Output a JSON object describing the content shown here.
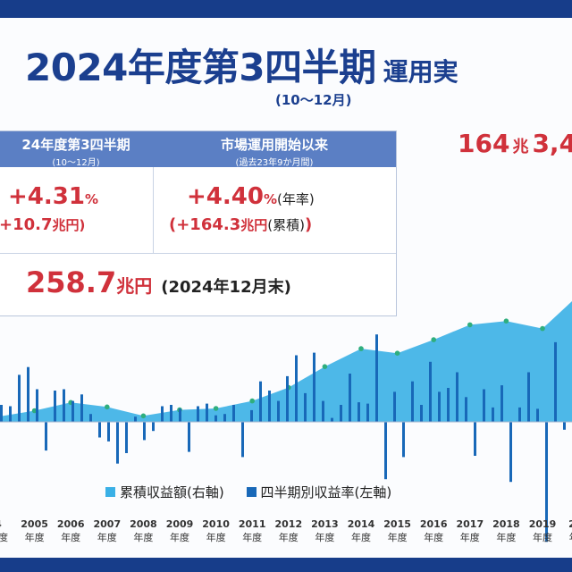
{
  "title": {
    "main": "2024年度第3四半期",
    "suffix": "運用実",
    "period": "(10〜12月)"
  },
  "headline": {
    "num1": "164",
    "unit1": "兆",
    "num2": "3,4"
  },
  "summary": {
    "col1_header": "24年度第3四半期",
    "col1_sub": "(10〜12月)",
    "col2_header": "市場運用開始以来",
    "col2_sub": "(過去23年9か月間)",
    "q_rate": "+4.31",
    "q_rate_unit": "%",
    "q_amount": "+10.7",
    "q_amount_unit": "兆円)",
    "q_amount_prefix": "(",
    "cum_rate": "+4.40",
    "cum_rate_unit": "%",
    "cum_rate_note": "(年率)",
    "cum_amount_prefix": "(+164.3",
    "cum_amount_unit": "兆円",
    "cum_amount_note": "(累積)",
    "cum_amount_close": ")",
    "assets": "258.7",
    "assets_unit": "兆円",
    "assets_date": "(2024年12月末)"
  },
  "legend": {
    "area": "累積収益額(右軸)",
    "bars": "四半期別収益率(左軸)"
  },
  "colors": {
    "area": "#3ab0e6",
    "bar": "#1868b8",
    "marker": "#2fae7e",
    "accent_red": "#d0313b",
    "navy": "#173d8a"
  },
  "chart_data": {
    "type": "bar",
    "x_labels": [
      "4",
      "2005",
      "2006",
      "2007",
      "2008",
      "2009",
      "2010",
      "2011",
      "2012",
      "2013",
      "2014",
      "2015",
      "2016",
      "2017",
      "2018",
      "2019",
      "202"
    ],
    "x_sublabel": "年度",
    "series": [
      {
        "name": "累積収益額(右軸)",
        "type": "area",
        "x": [
          "2004",
          "2005",
          "2006",
          "2007",
          "2008",
          "2009",
          "2010",
          "2011",
          "2012",
          "2013",
          "2014",
          "2015",
          "2016",
          "2017",
          "2018",
          "2019",
          "2020"
        ],
        "values": [
          7,
          15,
          26,
          20,
          8,
          16,
          18,
          28,
          46,
          74,
          98,
          92,
          110,
          130,
          135,
          125,
          170
        ]
      },
      {
        "name": "四半期別収益率(左軸)",
        "type": "bar",
        "values": [
          1.3,
          1.2,
          3.6,
          4.2,
          2.5,
          -2.2,
          2.4,
          2.5,
          1.6,
          2.1,
          0.6,
          -1.2,
          -1.5,
          -3.2,
          -2.4,
          0.4,
          -1.4,
          -0.7,
          1.2,
          1.3,
          1.0,
          -2.3,
          1.2,
          1.4,
          0.5,
          0.6,
          1.3,
          -2.7,
          0.9,
          3.1,
          2.4,
          1.6,
          3.5,
          5.1,
          2.2,
          5.3,
          1.6,
          0.3,
          1.3,
          3.7,
          1.5,
          1.4,
          6.7,
          -4.4,
          2.3,
          -2.7,
          3.1,
          1.3,
          4.6,
          2.3,
          2.6,
          3.8,
          1.9,
          -2.6,
          2.5,
          1.1,
          2.8,
          -4.6,
          1.1,
          3.8,
          1.0,
          -9.2,
          6.1,
          -0.6
        ]
      }
    ]
  }
}
